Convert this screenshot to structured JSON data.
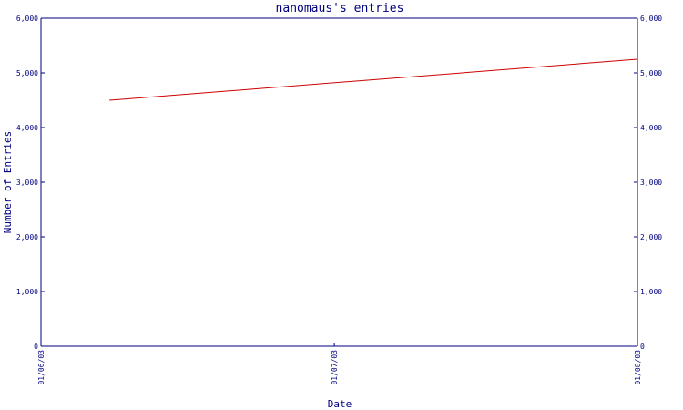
{
  "chart_data": {
    "type": "line",
    "title": "nanomaus's entries",
    "xlabel": "Date",
    "ylabel": "Number of Entries",
    "x_ticks": [
      "01/06/03",
      "01/07/03",
      "01/08/03"
    ],
    "y_ticks": [
      "0",
      "1,000",
      "2,000",
      "3,000",
      "4,000",
      "5,000",
      "6,000"
    ],
    "ylim": [
      0,
      6000
    ],
    "xlim": [
      "2003-06-01",
      "2003-08-01"
    ],
    "series": [
      {
        "x": [
          "2003-06-08",
          "2003-08-01"
        ],
        "values": [
          4500,
          5250
        ],
        "color": "#cc0000"
      }
    ],
    "axis_color": "#000080",
    "grid": false,
    "legend": "none"
  }
}
